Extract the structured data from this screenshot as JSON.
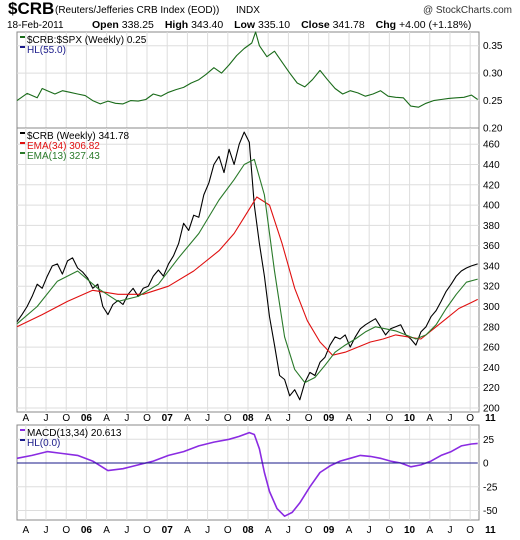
{
  "header": {
    "ticker": "$CRB",
    "name": "(Reuters/Jefferies CRB Index (EOD))",
    "exchange": "INDX",
    "watermark": "@ StockCharts.com",
    "date": "18-Feb-2011",
    "open_label": "Open",
    "open": "338.25",
    "high_label": "High",
    "high": "343.40",
    "low_label": "Low",
    "low": "335.10",
    "close_label": "Close",
    "close": "341.78",
    "chg_label": "Chg",
    "chg": "+4.00 (+1.18%)"
  },
  "chart_data": [
    {
      "type": "line",
      "panel": "ratio",
      "legend": [
        "$CRB:$SPX (Weekly) 0.25",
        "HL(55.0)"
      ],
      "ylim": [
        0.2,
        0.375
      ],
      "ticks": [
        "0.35",
        "0.30",
        "0.25",
        "0.20"
      ],
      "tick_values": [
        0.35,
        0.3,
        0.25,
        0.2
      ],
      "series": [
        {
          "name": "$CRB:$SPX (Weekly)",
          "color": "#1a6b1a",
          "x": [
            0,
            4,
            8,
            10,
            12,
            15,
            18,
            21,
            24,
            27,
            30,
            33,
            36,
            39,
            42,
            45,
            48,
            51,
            54,
            57,
            60,
            63,
            66,
            69,
            72,
            75,
            78,
            81,
            84,
            87,
            90,
            93,
            94.5,
            96,
            99,
            102,
            105,
            108,
            111,
            114,
            117,
            120,
            123,
            126,
            129,
            132,
            135,
            138,
            141,
            144,
            147,
            150,
            153,
            156,
            159,
            162,
            165,
            168,
            171,
            174,
            177,
            180,
            182.5
          ],
          "values": [
            0.25,
            0.263,
            0.255,
            0.272,
            0.268,
            0.262,
            0.268,
            0.265,
            0.262,
            0.259,
            0.25,
            0.244,
            0.249,
            0.245,
            0.244,
            0.25,
            0.249,
            0.252,
            0.262,
            0.258,
            0.265,
            0.27,
            0.274,
            0.282,
            0.288,
            0.298,
            0.31,
            0.3,
            0.315,
            0.332,
            0.345,
            0.355,
            0.375,
            0.35,
            0.33,
            0.34,
            0.32,
            0.3,
            0.282,
            0.275,
            0.288,
            0.305,
            0.288,
            0.272,
            0.262,
            0.268,
            0.264,
            0.258,
            0.262,
            0.268,
            0.258,
            0.256,
            0.255,
            0.24,
            0.238,
            0.245,
            0.25,
            0.252,
            0.254,
            0.255,
            0.256,
            0.26,
            0.252
          ]
        }
      ]
    },
    {
      "type": "line",
      "panel": "price",
      "legend": [
        "$CRB (Weekly) 341.78",
        "EMA(34) 306.82",
        "EMA(13) 327.43"
      ],
      "ylim": [
        196,
        476
      ],
      "ticks": [
        "460",
        "440",
        "420",
        "400",
        "380",
        "360",
        "340",
        "320",
        "300",
        "280",
        "260",
        "240",
        "220",
        "200"
      ],
      "tick_values": [
        460,
        440,
        420,
        400,
        380,
        360,
        340,
        320,
        300,
        280,
        260,
        240,
        220,
        200
      ],
      "series": [
        {
          "name": "$CRB (Weekly)",
          "color": "#000000",
          "x": [
            0,
            2,
            4,
            6,
            8,
            10,
            12,
            14,
            16,
            18,
            20,
            22,
            24,
            26,
            28,
            30,
            32,
            34,
            36,
            38,
            40,
            42,
            44,
            46,
            48,
            50,
            52,
            54,
            56,
            58,
            60,
            62,
            64,
            66,
            68,
            70,
            72,
            74,
            76,
            78,
            80,
            82,
            84,
            86,
            88,
            90,
            92,
            94,
            96,
            98,
            100,
            102,
            104,
            106,
            108,
            110,
            112,
            114,
            116,
            118,
            120,
            122,
            124,
            126,
            128,
            130,
            132,
            134,
            136,
            138,
            140,
            142,
            144,
            146,
            148,
            150,
            152,
            154,
            156,
            158,
            160,
            162,
            164,
            166,
            168,
            170,
            172,
            174,
            176,
            178,
            180,
            182.5
          ],
          "values": [
            285,
            292,
            300,
            310,
            322,
            318,
            330,
            340,
            342,
            332,
            345,
            348,
            338,
            334,
            328,
            318,
            322,
            300,
            292,
            302,
            306,
            302,
            312,
            318,
            310,
            318,
            320,
            330,
            336,
            330,
            342,
            350,
            362,
            382,
            375,
            390,
            388,
            410,
            422,
            440,
            448,
            432,
            455,
            440,
            460,
            472,
            462,
            400,
            362,
            330,
            290,
            262,
            232,
            228,
            212,
            218,
            208,
            225,
            235,
            232,
            245,
            250,
            262,
            270,
            268,
            272,
            260,
            270,
            278,
            282,
            285,
            288,
            280,
            272,
            278,
            280,
            282,
            272,
            268,
            262,
            275,
            280,
            290,
            296,
            305,
            315,
            322,
            330,
            335,
            338,
            340,
            342
          ]
        },
        {
          "name": "EMA(34)",
          "color": "#e01010",
          "x": [
            0,
            10,
            20,
            30,
            40,
            50,
            60,
            70,
            80,
            86,
            90,
            95,
            100,
            105,
            110,
            115,
            120,
            125,
            130,
            135,
            140,
            145,
            150,
            155,
            160,
            165,
            170,
            175,
            180,
            182.5
          ],
          "values": [
            280,
            292,
            305,
            316,
            312,
            312,
            320,
            335,
            355,
            372,
            388,
            408,
            400,
            362,
            318,
            286,
            265,
            252,
            255,
            260,
            265,
            268,
            272,
            270,
            268,
            278,
            288,
            298,
            304,
            307
          ]
        },
        {
          "name": "EMA(13)",
          "color": "#2a7a2a",
          "x": [
            0,
            8,
            16,
            24,
            32,
            40,
            48,
            56,
            64,
            72,
            80,
            86,
            90,
            94,
            98,
            102,
            106,
            110,
            114,
            118,
            122,
            126,
            130,
            134,
            138,
            142,
            146,
            150,
            154,
            158,
            162,
            166,
            170,
            174,
            178,
            182.5
          ],
          "values": [
            283,
            300,
            325,
            335,
            318,
            305,
            310,
            322,
            348,
            372,
            405,
            425,
            440,
            445,
            410,
            335,
            270,
            238,
            225,
            230,
            242,
            255,
            262,
            268,
            275,
            280,
            278,
            276,
            272,
            268,
            272,
            282,
            298,
            312,
            324,
            327
          ]
        }
      ]
    },
    {
      "type": "line",
      "panel": "macd",
      "legend": [
        "MACD(13,34) 20.613",
        "HL(0.0)"
      ],
      "ylim": [
        -60,
        40
      ],
      "ticks": [
        "25",
        "0",
        "-25",
        "-50"
      ],
      "tick_values": [
        25,
        0,
        -25,
        -50
      ],
      "series": [
        {
          "name": "MACD(13,34)",
          "color": "#8a2be2",
          "x": [
            0,
            6,
            12,
            18,
            24,
            30,
            36,
            42,
            48,
            54,
            60,
            66,
            72,
            78,
            84,
            88,
            92,
            94,
            96,
            98,
            100,
            103,
            106,
            109,
            112,
            116,
            120,
            124,
            128,
            132,
            136,
            140,
            144,
            148,
            152,
            156,
            160,
            164,
            168,
            172,
            176,
            180,
            182.5
          ],
          "values": [
            5,
            8,
            12,
            10,
            8,
            2,
            -8,
            -6,
            -2,
            2,
            8,
            12,
            18,
            22,
            25,
            28,
            32,
            30,
            15,
            -10,
            -30,
            -48,
            -56,
            -52,
            -42,
            -25,
            -10,
            -3,
            2,
            5,
            8,
            7,
            5,
            2,
            0,
            -4,
            -2,
            2,
            8,
            12,
            18,
            20,
            20.6
          ]
        },
        {
          "name": "HL(0.0)",
          "color": "#1a1a8a",
          "x": [
            0,
            182.5
          ],
          "values": [
            0,
            0
          ]
        }
      ]
    }
  ],
  "x_axis": {
    "labels": [
      "A",
      "J",
      "O",
      "06",
      "A",
      "J",
      "O",
      "07",
      "A",
      "J",
      "O",
      "08",
      "A",
      "J",
      "O",
      "09",
      "A",
      "J",
      "O",
      "10",
      "A",
      "J",
      "O",
      "11"
    ],
    "positions": [
      3.5,
      11.5,
      19.5,
      27.5,
      35.5,
      43.5,
      51.5,
      59.5,
      67.5,
      75.5,
      83.5,
      91.5,
      99.5,
      107.5,
      115.5,
      123.5,
      131.5,
      139.5,
      147.5,
      155.5,
      163.5,
      171.5,
      179.5,
      187.5
    ]
  }
}
